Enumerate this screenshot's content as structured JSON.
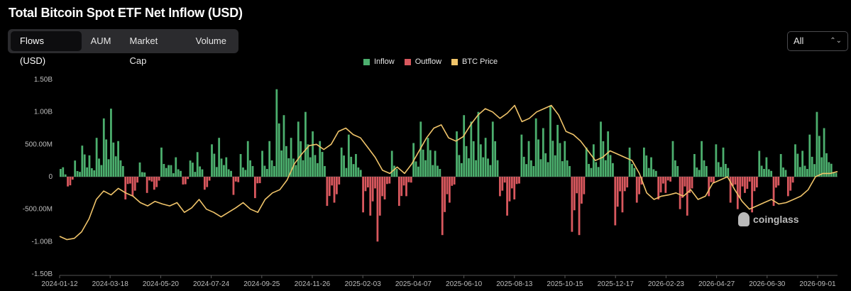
{
  "title": "Total Bitcoin Spot ETF Net Inflow (USD)",
  "tabs": [
    {
      "label": "Flows (USD)",
      "active": true
    },
    {
      "label": "AUM",
      "active": false
    },
    {
      "label": "Market Cap",
      "active": false
    },
    {
      "label": "Volume",
      "active": false
    }
  ],
  "range_select": {
    "value": "All",
    "icon": "up-down-chevron-icon"
  },
  "watermark": "coinglass",
  "colors": {
    "inflow": "#4caf6e",
    "outflow": "#d9585e",
    "price": "#f0c46a",
    "background": "#000000"
  },
  "chart_data": {
    "type": "bar",
    "title": "Total Bitcoin Spot ETF Net Inflow (USD)",
    "legend": [
      {
        "name": "Inflow",
        "color": "#4caf6e"
      },
      {
        "name": "Outflow",
        "color": "#d9585e"
      },
      {
        "name": "BTC Price",
        "color": "#f0c46a"
      }
    ],
    "legend_position": "top-center",
    "y_ticks": [
      "1.50B",
      "1.00B",
      "500.00M",
      "0",
      "-500.00M",
      "-1.00B",
      "-1.50B"
    ],
    "ylim": [
      -1.5,
      1.5
    ],
    "y_unit": "billion USD",
    "x_ticks": [
      "2024-01-12",
      "2024-03-18",
      "2024-05-20",
      "2024-07-24",
      "2024-09-25",
      "2024-11-26",
      "2025-02-03",
      "2025-04-07",
      "2025-06-10",
      "2025-08-13",
      "2025-10-15",
      "2025-12-17",
      "2026-02-23",
      "2026-04-27",
      "2026-06-30",
      "2026-09-01"
    ],
    "grid": false,
    "flows_sampled_billion": [
      0.12,
      -0.15,
      0.25,
      0.48,
      0.33,
      0.6,
      0.9,
      1.05,
      0.55,
      -0.35,
      -0.3,
      0.22,
      -0.25,
      -0.2,
      0.45,
      0.18,
      0.3,
      -0.12,
      0.25,
      0.38,
      -0.2,
      0.5,
      0.6,
      0.3,
      -0.28,
      0.35,
      0.55,
      -0.33,
      0.4,
      0.55,
      1.35,
      0.95,
      0.6,
      0.85,
      1.0,
      0.7,
      0.55,
      -0.45,
      -0.4,
      0.45,
      0.65,
      0.35,
      -0.55,
      -0.6,
      -1.0,
      -0.35,
      0.4,
      -0.45,
      -0.3,
      0.52,
      0.85,
      0.6,
      0.4,
      -0.9,
      -0.4,
      0.7,
      0.95,
      0.85,
      1.0,
      0.6,
      0.85,
      -0.3,
      -0.6,
      -0.35,
      0.65,
      0.55,
      0.9,
      0.75,
      1.1,
      0.8,
      0.55,
      -0.85,
      -0.9,
      0.45,
      0.5,
      0.85,
      0.7,
      -0.75,
      -0.55,
      0.45,
      -0.4,
      0.45,
      0.3,
      -0.35,
      -0.25,
      0.55,
      -0.5,
      -0.6,
      0.35,
      0.55,
      -0.3,
      0.5,
      0.45,
      -0.4,
      -0.5,
      -0.25,
      -0.55,
      0.4,
      0.3,
      -0.45,
      0.35,
      -0.3,
      0.5,
      0.4,
      0.65,
      1.0,
      0.75,
      0.2
    ],
    "btc_price_line_relative": [
      -0.92,
      -0.97,
      -0.95,
      -0.85,
      -0.65,
      -0.35,
      -0.22,
      -0.28,
      -0.18,
      -0.25,
      -0.3,
      -0.4,
      -0.45,
      -0.38,
      -0.42,
      -0.45,
      -0.4,
      -0.55,
      -0.48,
      -0.35,
      -0.5,
      -0.55,
      -0.62,
      -0.55,
      -0.48,
      -0.4,
      -0.5,
      -0.55,
      -0.35,
      -0.25,
      -0.2,
      -0.05,
      0.2,
      0.35,
      0.48,
      0.5,
      0.42,
      0.5,
      0.7,
      0.75,
      0.65,
      0.6,
      0.45,
      0.3,
      0.1,
      0.05,
      0.15,
      0.05,
      0.2,
      0.4,
      0.6,
      0.75,
      0.8,
      0.6,
      0.55,
      0.62,
      0.8,
      0.95,
      1.05,
      1.0,
      0.9,
      0.98,
      1.1,
      0.85,
      0.9,
      1.0,
      1.05,
      1.1,
      0.95,
      0.7,
      0.65,
      0.55,
      0.4,
      0.25,
      0.3,
      0.4,
      0.35,
      0.3,
      0.25,
      0.05,
      -0.25,
      -0.35,
      -0.3,
      -0.28,
      -0.25,
      -0.3,
      -0.2,
      -0.35,
      -0.3,
      -0.1,
      -0.05,
      0.0,
      -0.2,
      -0.38,
      -0.5,
      -0.45,
      -0.4,
      -0.35,
      -0.42,
      -0.4,
      -0.35,
      -0.3,
      -0.2,
      0.0,
      0.05,
      0.05,
      0.08
    ]
  }
}
